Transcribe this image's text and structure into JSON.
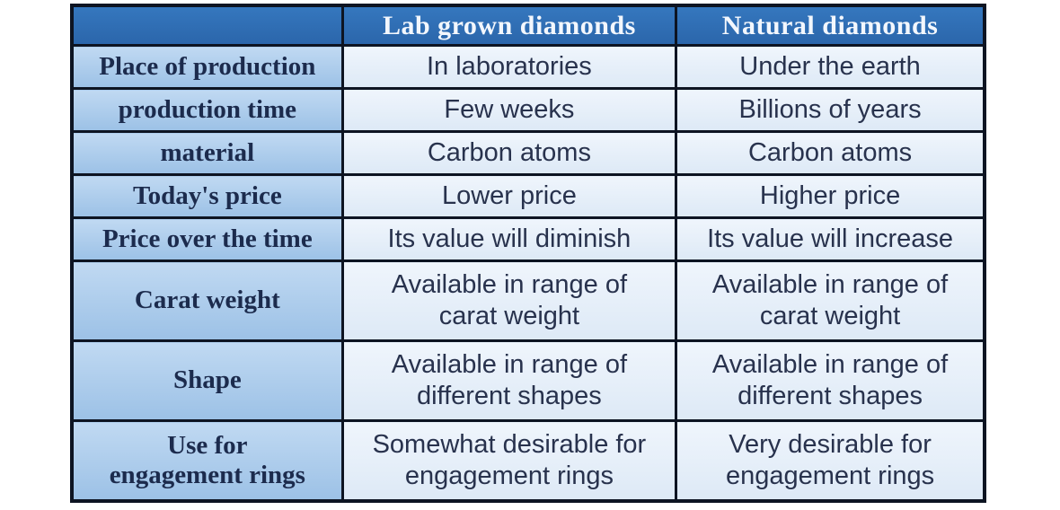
{
  "colors": {
    "page_background": "#ffffff",
    "header_background": "#2e6cb4",
    "header_text": "#f3f7fd",
    "label_background": "#a8c9ea",
    "label_text": "#1c2b4d",
    "cell_background": "#e4edf8",
    "cell_text": "#28324d",
    "border": "#0d1422"
  },
  "table": {
    "columns": [
      "",
      "Lab grown diamonds",
      "Natural diamonds"
    ],
    "rows": [
      {
        "label": "Place of production",
        "lab": "In laboratories",
        "natural": "Under the earth"
      },
      {
        "label": "production time",
        "lab": "Few weeks",
        "natural": "Billions of years"
      },
      {
        "label": "material",
        "lab": "Carbon atoms",
        "natural": "Carbon atoms"
      },
      {
        "label": "Today's price",
        "lab": "Lower price",
        "natural": "Higher price"
      },
      {
        "label": "Price over the time",
        "lab": "Its value will diminish",
        "natural": "Its value will increase"
      },
      {
        "label": "Carat weight",
        "lab": "Available in range of\ncarat weight",
        "natural": "Available in range of\ncarat weight"
      },
      {
        "label": "Shape",
        "lab": "Available in range of\ndifferent shapes",
        "natural": "Available in range of\ndifferent shapes"
      },
      {
        "label": "Use for\nengagement rings",
        "lab": "Somewhat desirable for\nengagement rings",
        "natural": "Very desirable for\nengagement rings"
      }
    ]
  }
}
